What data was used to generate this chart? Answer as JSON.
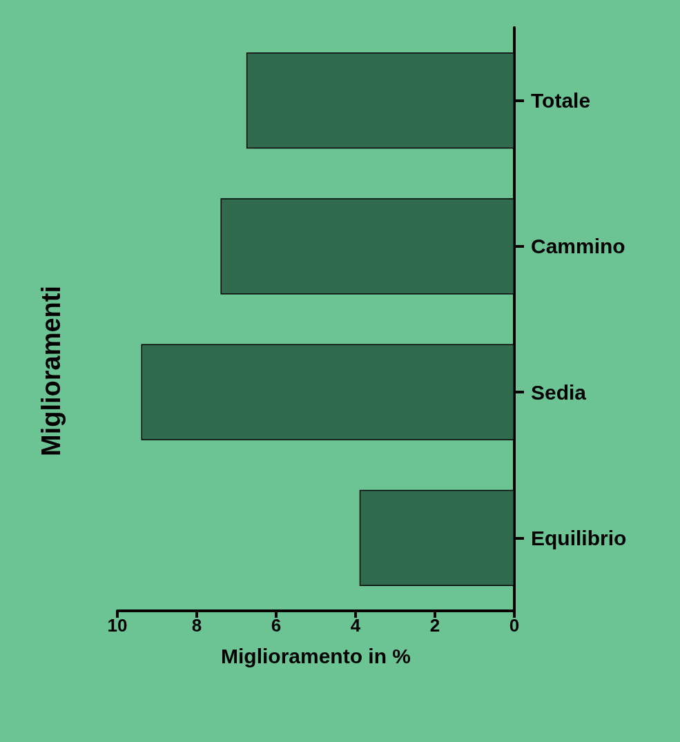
{
  "chart_data": {
    "type": "bar",
    "orientation": "horizontal",
    "title": "Miglioramenti",
    "xlabel": "Miglioramento in %",
    "categories": [
      "Totale",
      "Cammino",
      "Sedia",
      "Equilibrio"
    ],
    "values": [
      6.75,
      7.4,
      9.4,
      3.9
    ],
    "color": "#2f6b4c",
    "xlim": [
      10,
      0
    ],
    "xticks": [
      10,
      8,
      6,
      4,
      2,
      0
    ],
    "grid": false
  }
}
